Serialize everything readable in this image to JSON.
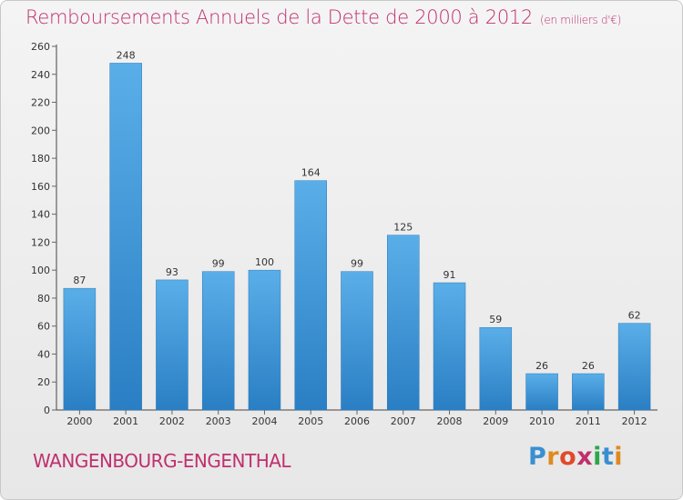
{
  "header": {
    "title": "Remboursements Annuels de la Dette de 2000 à 2012",
    "unit": "(en milliers d'€)"
  },
  "footer": {
    "town": "WANGENBOURG-ENGENTHAL",
    "logo": {
      "letters": [
        "P",
        "r",
        "o",
        "x",
        "i",
        "t",
        "i"
      ],
      "colors": [
        "#3a8fd0",
        "#e08a1e",
        "#e04a2a",
        "#c0306e",
        "#2aa84a",
        "#3a8fd0",
        "#e08a1e"
      ]
    }
  },
  "colors": {
    "bar_light": "#5aaee8",
    "bar_dark": "#2a7fc4",
    "axis": "#444444",
    "grid_tick": "#666666",
    "label": "#333333"
  },
  "chart_data": {
    "type": "bar",
    "title": "Remboursements Annuels de la Dette de 2000 à 2012",
    "xlabel": "",
    "ylabel": "",
    "categories": [
      "2000",
      "2001",
      "2002",
      "2003",
      "2004",
      "2005",
      "2006",
      "2007",
      "2008",
      "2009",
      "2010",
      "2011",
      "2012"
    ],
    "values": [
      87,
      248,
      93,
      99,
      100,
      164,
      99,
      125,
      91,
      59,
      26,
      26,
      62
    ],
    "ylim": [
      0,
      260
    ],
    "yticks": [
      0,
      20,
      40,
      60,
      80,
      100,
      120,
      140,
      160,
      180,
      200,
      220,
      240,
      260
    ],
    "grid": false,
    "data_labels": true
  }
}
